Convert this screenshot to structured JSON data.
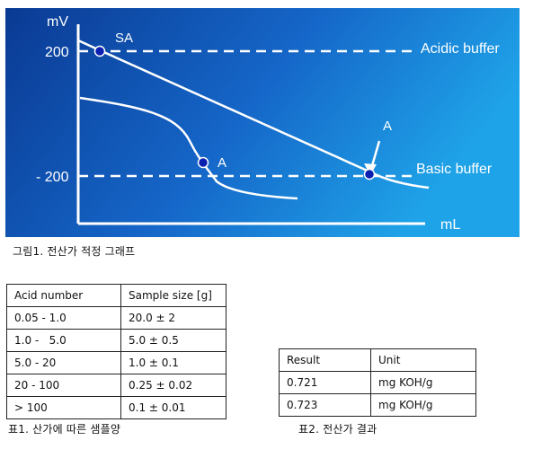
{
  "figure": {
    "y_unit": "mV",
    "x_unit": "mL",
    "tick_200": "200",
    "tick_minus_200": "- 200",
    "acidic_buffer_label": "Acidic buffer",
    "basic_buffer_label": "Basic buffer",
    "sa_label": "SA",
    "a_label_1": "A",
    "a_label_2": "A",
    "colors": {
      "bg_left": "#0a3a93",
      "bg_right": "#1fa3e8",
      "line": "#ffffff",
      "point": "#0b1fb0"
    }
  },
  "caption1": "그림1. 전산가 적정 그래프",
  "acid_table": {
    "headers": [
      "Acid number",
      "Sample size [g]"
    ],
    "rows": [
      [
        "0.05 - 1.0",
        "20.0 ± 2"
      ],
      [
        "1.0 -   5.0",
        "5.0 ± 0.5"
      ],
      [
        "5.0 - 20",
        "1.0 ± 0.1"
      ],
      [
        "20 - 100",
        "0.25 ± 0.02"
      ],
      [
        "> 100",
        "0.1 ± 0.01"
      ]
    ]
  },
  "caption2": "표1. 산가에 따른 샘플양",
  "result_table": {
    "headers": [
      "Result",
      "Unit"
    ],
    "rows": [
      [
        "0.721",
        "mg KOH/g"
      ],
      [
        "0.723",
        "mg KOH/g"
      ]
    ]
  },
  "caption3": "표2. 전산가 결과"
}
